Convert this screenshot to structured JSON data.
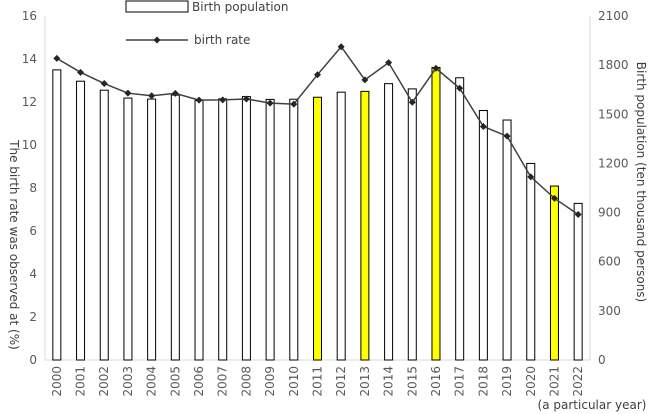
{
  "chart_data": {
    "type": "bar+line",
    "categories": [
      "2000",
      "2001",
      "2002",
      "2003",
      "2004",
      "2005",
      "2006",
      "2007",
      "2008",
      "2009",
      "2010",
      "2011",
      "2012",
      "2013",
      "2014",
      "2015",
      "2016",
      "2017",
      "2018",
      "2019",
      "2020",
      "2021",
      "2022"
    ],
    "series": [
      {
        "name": "Birth population",
        "type": "bar",
        "axis": "right",
        "values": [
          1771,
          1702,
          1647,
          1599,
          1593,
          1617,
          1584,
          1594,
          1608,
          1591,
          1592,
          1604,
          1635,
          1640,
          1687,
          1655,
          1786,
          1723,
          1523,
          1465,
          1200,
          1062,
          956
        ],
        "highlighted": [
          "2011",
          "2013",
          "2016",
          "2021"
        ],
        "colors": {
          "default": "#ffffff",
          "highlight": "#ffff00",
          "stroke": "#000000"
        }
      },
      {
        "name": "birth rate",
        "type": "line",
        "axis": "left",
        "values": [
          14.03,
          13.38,
          12.86,
          12.41,
          12.29,
          12.4,
          12.09,
          12.1,
          12.14,
          11.95,
          11.9,
          13.27,
          14.57,
          13.03,
          13.83,
          11.99,
          13.57,
          12.64,
          10.86,
          10.41,
          8.52,
          7.52,
          6.77
        ],
        "color": "#404040",
        "marker": "diamond"
      }
    ],
    "left_axis": {
      "label": "The birth rate was observed at (%)",
      "min": 0,
      "max": 16,
      "ticks": [
        0,
        2,
        4,
        6,
        8,
        10,
        12,
        14,
        16
      ]
    },
    "right_axis": {
      "label": "Birth population (ten thousand persons)",
      "min": 0,
      "max": 2100,
      "ticks": [
        0,
        300,
        600,
        900,
        1200,
        1500,
        1800,
        2100
      ]
    },
    "xlabel": "(a particular year)",
    "legend": {
      "placement": "top-center"
    }
  }
}
